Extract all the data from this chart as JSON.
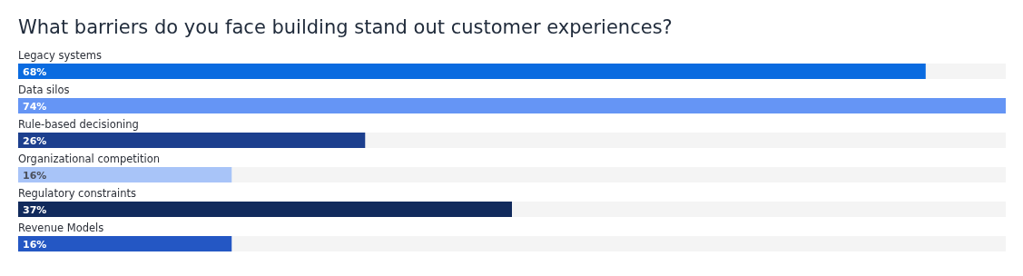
{
  "chart_data": {
    "type": "bar",
    "orientation": "horizontal",
    "title": "What barriers do you face building stand out customer experiences?",
    "categories": [
      "Legacy systems",
      "Data silos",
      "Rule-based decisioning",
      "Organizational competition",
      "Regulatory constraints",
      "Revenue Models"
    ],
    "values": [
      68,
      74,
      26,
      16,
      37,
      16
    ],
    "colors": [
      "#0a6be0",
      "#6595f5",
      "#1c3f8e",
      "#a8c4f8",
      "#112a5c",
      "#2457c4"
    ],
    "value_labels": [
      "68%",
      "74%",
      "26%",
      "16%",
      "37%",
      "16%"
    ],
    "data_labels": false
  }
}
